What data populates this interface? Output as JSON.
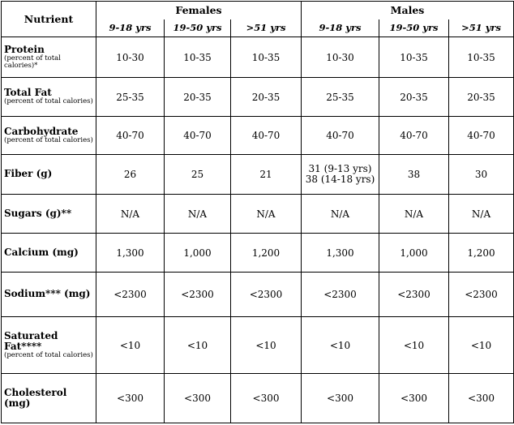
{
  "table": {
    "corner": "Nutrient",
    "groups": [
      "Females",
      "Males"
    ],
    "subheaders": [
      "9-18 yrs",
      "19-50 yrs",
      ">51 yrs",
      "9-18 yrs",
      "19-50 yrs",
      ">51 yrs"
    ],
    "rows": [
      {
        "nutrient": "Protein",
        "note": "(percent of total calories)*",
        "values": [
          "10-30",
          "10-35",
          "10-35",
          "10-30",
          "10-35",
          "10-35"
        ]
      },
      {
        "nutrient": "Total Fat",
        "note": "(percent of total calories)",
        "values": [
          "25-35",
          "20-35",
          "20-35",
          "25-35",
          "20-35",
          "20-35"
        ]
      },
      {
        "nutrient": "Carbohydrate",
        "note": "(percent of total calories)",
        "values": [
          "40-70",
          "40-70",
          "40-70",
          "40-70",
          "40-70",
          "40-70"
        ]
      },
      {
        "nutrient": "Fiber (g)",
        "values": [
          "26",
          "25",
          "21",
          [
            "31 (9-13 yrs)",
            "38 (14-18 yrs)"
          ],
          "38",
          "30"
        ]
      },
      {
        "nutrient": "Sugars (g)**",
        "values": [
          "N/A",
          "N/A",
          "N/A",
          "N/A",
          "N/A",
          "N/A"
        ]
      },
      {
        "nutrient": "Calcium (mg)",
        "values": [
          "1,300",
          "1,000",
          "1,200",
          "1,300",
          "1,000",
          "1,200"
        ]
      },
      {
        "nutrient": "Sodium*** (mg)",
        "values": [
          "<2300",
          "<2300",
          "<2300",
          "<2300",
          "<2300",
          "<2300"
        ]
      },
      {
        "nutrient": "Saturated Fat****",
        "note": "(percent of total calories)",
        "values": [
          "<10",
          "<10",
          "<10",
          "<10",
          "<10",
          "<10"
        ]
      },
      {
        "nutrient": "Cholesterol (mg)",
        "values": [
          "<300",
          "<300",
          "<300",
          "<300",
          "<300",
          "<300"
        ]
      }
    ]
  }
}
